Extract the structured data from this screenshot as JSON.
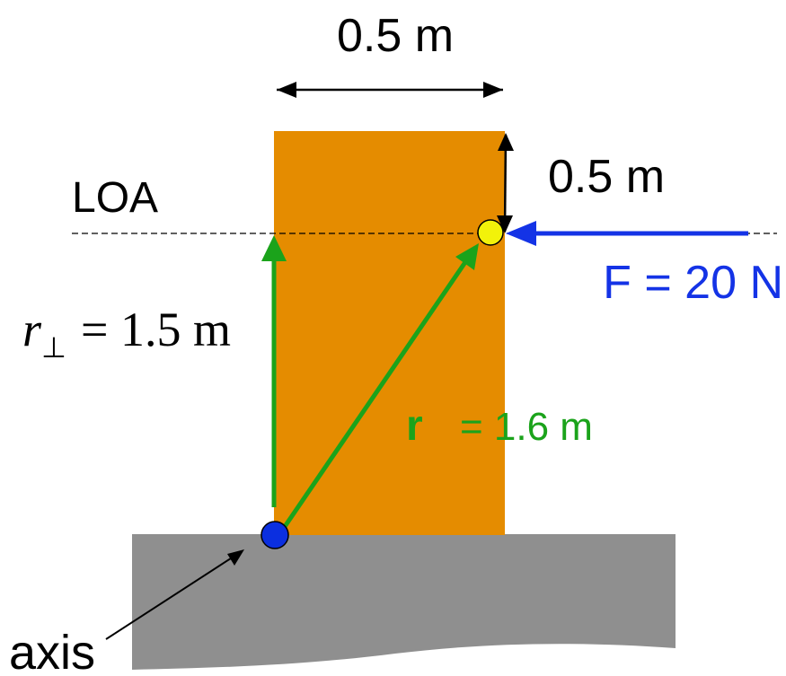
{
  "labels": {
    "top_width": "0.5 m",
    "right_offset": "0.5 m",
    "loa": "LOA",
    "force": "F = 20 N",
    "r_perp_symbol": "r",
    "r_perp_subscript": "⊥",
    "r_perp_value": "= 1.5 m",
    "r_symbol": "r",
    "r_value": "= 1.6 m",
    "axis": "axis"
  },
  "colors": {
    "block": "#E58C00",
    "ground": "#8F8F8F",
    "vector": "#1BA31B",
    "force": "#1433E6",
    "axis_point": "#0B2FE0",
    "force_point": "#F2F20A",
    "line": "#000000"
  },
  "icons": {
    "axis_point": "blue-circle",
    "force_point": "yellow-circle"
  }
}
